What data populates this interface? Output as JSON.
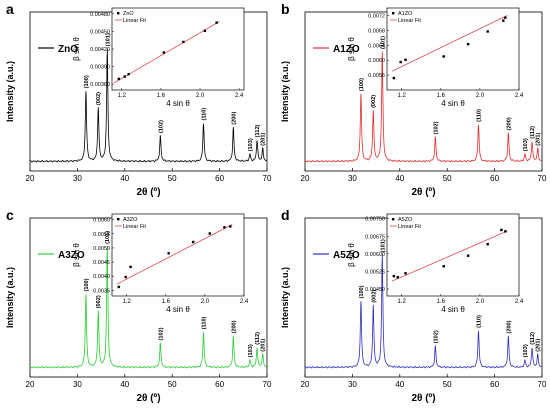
{
  "chart_data": [
    {
      "type": "line",
      "panel_label": "a",
      "legend": "ZnO",
      "color": "#000000",
      "xlabel": "2θ (º)",
      "ylabel": "Intensity (a.u.)",
      "xlim": [
        20,
        70
      ],
      "xticks": [
        20,
        30,
        40,
        50,
        60,
        70
      ],
      "peaks": [
        {
          "label": "(100)",
          "x": 31.8,
          "h": 0.5
        },
        {
          "label": "(002)",
          "x": 34.4,
          "h": 0.38
        },
        {
          "label": "(101)",
          "x": 36.3,
          "h": 0.8
        },
        {
          "label": "(102)",
          "x": 47.5,
          "h": 0.18
        },
        {
          "label": "(110)",
          "x": 56.6,
          "h": 0.27
        },
        {
          "label": "(200)",
          "x": 62.9,
          "h": 0.24
        },
        {
          "label": "(103)",
          "x": 66.4,
          "h": 0.05
        },
        {
          "label": "(112)",
          "x": 67.9,
          "h": 0.15
        },
        {
          "label": "(201)",
          "x": 69.1,
          "h": 0.09
        }
      ],
      "inset": {
        "type": "scatter",
        "xlabel": "4 sin θ",
        "ylabel": "β sin θ",
        "xlim": [
          1.1,
          2.45
        ],
        "ylim": [
          0.0035,
          0.0049
        ],
        "xticks": [
          "1.2",
          "1.6",
          "2.0",
          "2.4"
        ],
        "yticks": [
          "0.00360",
          "0.00390",
          "0.00420",
          "0.00450",
          "0.00480"
        ],
        "legend": [
          "ZnO",
          "Linear Fit"
        ],
        "points": [
          [
            1.17,
            0.00369
          ],
          [
            1.23,
            0.00373
          ],
          [
            1.27,
            0.00377
          ],
          [
            1.63,
            0.00414
          ],
          [
            1.83,
            0.00432
          ],
          [
            2.05,
            0.00451
          ],
          [
            2.17,
            0.00465
          ]
        ],
        "fit": [
          [
            1.12,
            0.00362
          ],
          [
            2.2,
            0.00467
          ]
        ]
      }
    },
    {
      "type": "line",
      "panel_label": "b",
      "legend": "A1ZO",
      "color": "#e03030",
      "xlabel": "2θ (º)",
      "ylabel": "Intensity (a.u.)",
      "xlim": [
        20,
        70
      ],
      "xticks": [
        20,
        30,
        40,
        50,
        60,
        70
      ],
      "peaks": [
        {
          "label": "(100)",
          "x": 31.8,
          "h": 0.48
        },
        {
          "label": "(002)",
          "x": 34.4,
          "h": 0.36
        },
        {
          "label": "(101)",
          "x": 36.3,
          "h": 0.78
        },
        {
          "label": "(102)",
          "x": 47.5,
          "h": 0.17
        },
        {
          "label": "(110)",
          "x": 56.6,
          "h": 0.26
        },
        {
          "label": "(200)",
          "x": 62.9,
          "h": 0.2
        },
        {
          "label": "(103)",
          "x": 66.4,
          "h": 0.05
        },
        {
          "label": "(112)",
          "x": 67.9,
          "h": 0.14
        },
        {
          "label": "(201)",
          "x": 69.1,
          "h": 0.09
        }
      ],
      "inset": {
        "type": "scatter",
        "xlabel": "4 sin θ",
        "ylabel": "β sin θ",
        "xlim": [
          1.05,
          2.4
        ],
        "ylim": [
          0.0052,
          0.0074
        ],
        "xticks": [
          "1.2",
          "1.6",
          "2.0",
          "2.4"
        ],
        "yticks": [
          "0.0056",
          "0.0060",
          "0.0064",
          "0.0068",
          "0.0072"
        ],
        "legend": [
          "A1ZO",
          "Linear Fit"
        ],
        "points": [
          [
            1.12,
            0.00552
          ],
          [
            1.19,
            0.00595
          ],
          [
            1.24,
            0.00601
          ],
          [
            1.63,
            0.0061
          ],
          [
            1.88,
            0.00643
          ],
          [
            2.08,
            0.00677
          ],
          [
            2.24,
            0.00706
          ],
          [
            2.26,
            0.00714
          ]
        ],
        "fit": [
          [
            1.1,
            0.0057
          ],
          [
            2.28,
            0.0072
          ]
        ]
      }
    },
    {
      "type": "line",
      "panel_label": "c",
      "legend": "A3ZO",
      "color": "#2ecc3a",
      "xlabel": "2θ (º)",
      "ylabel": "Intensity (a.u.)",
      "xlim": [
        20,
        70
      ],
      "xticks": [
        20,
        30,
        40,
        50,
        60,
        70
      ],
      "peaks": [
        {
          "label": "(100)",
          "x": 31.8,
          "h": 0.52
        },
        {
          "label": "(002)",
          "x": 34.4,
          "h": 0.4
        },
        {
          "label": "(101)",
          "x": 36.3,
          "h": 0.86
        },
        {
          "label": "(102)",
          "x": 47.5,
          "h": 0.17
        },
        {
          "label": "(110)",
          "x": 56.6,
          "h": 0.25
        },
        {
          "label": "(200)",
          "x": 62.9,
          "h": 0.22
        },
        {
          "label": "(103)",
          "x": 66.4,
          "h": 0.05
        },
        {
          "label": "(112)",
          "x": 67.9,
          "h": 0.14
        },
        {
          "label": "(201)",
          "x": 69.1,
          "h": 0.09
        }
      ],
      "inset": {
        "type": "scatter",
        "xlabel": "4 sin θ",
        "ylabel": "β sin θ",
        "xlim": [
          1.05,
          2.4
        ],
        "ylim": [
          0.0033,
          0.0062
        ],
        "xticks": [
          "1.2",
          "1.6",
          "2.0",
          "2.4"
        ],
        "yticks": [
          "0.0035",
          "0.0040",
          "0.0045",
          "0.0050",
          "0.0055",
          "0.0060"
        ],
        "legend": [
          "A3ZO",
          "Linear Fit"
        ],
        "points": [
          [
            1.12,
            0.00362
          ],
          [
            1.19,
            0.00397
          ],
          [
            1.24,
            0.00433
          ],
          [
            1.63,
            0.00481
          ],
          [
            1.88,
            0.00521
          ],
          [
            2.05,
            0.00551
          ],
          [
            2.2,
            0.00573
          ],
          [
            2.26,
            0.00576
          ]
        ],
        "fit": [
          [
            1.1,
            0.00372
          ],
          [
            2.28,
            0.00583
          ]
        ]
      }
    },
    {
      "type": "line",
      "panel_label": "d",
      "legend": "A5ZO",
      "color": "#3030c0",
      "xlabel": "2θ (º)",
      "ylabel": "Intensity (a.u.)",
      "xlim": [
        20,
        70
      ],
      "xticks": [
        20,
        30,
        40,
        50,
        60,
        70
      ],
      "peaks": [
        {
          "label": "(100)",
          "x": 31.8,
          "h": 0.47
        },
        {
          "label": "(002)",
          "x": 34.4,
          "h": 0.44
        },
        {
          "label": "(101)",
          "x": 36.3,
          "h": 0.8
        },
        {
          "label": "(102)",
          "x": 47.5,
          "h": 0.15
        },
        {
          "label": "(110)",
          "x": 56.6,
          "h": 0.26
        },
        {
          "label": "(200)",
          "x": 62.9,
          "h": 0.22
        },
        {
          "label": "(103)",
          "x": 66.4,
          "h": 0.05
        },
        {
          "label": "(112)",
          "x": 67.9,
          "h": 0.14
        },
        {
          "label": "(201)",
          "x": 69.1,
          "h": 0.09
        }
      ],
      "inset": {
        "type": "scatter",
        "xlabel": "4 sin θ",
        "ylabel": "β sin θ",
        "xlim": [
          1.05,
          2.4
        ],
        "ylim": [
          0.0042,
          0.0077
        ],
        "xticks": [
          "1.2",
          "1.6",
          "2.0",
          "2.4"
        ],
        "yticks": [
          "0.00450",
          "0.00525",
          "0.00600",
          "0.00675",
          "0.00750"
        ],
        "legend": [
          "A5ZO",
          "Linear Fit"
        ],
        "points": [
          [
            1.12,
            0.00505
          ],
          [
            1.16,
            0.005
          ],
          [
            1.24,
            0.00517
          ],
          [
            1.63,
            0.00547
          ],
          [
            1.88,
            0.00592
          ],
          [
            2.08,
            0.00641
          ],
          [
            2.22,
            0.00702
          ],
          [
            2.26,
            0.00696
          ]
        ],
        "fit": [
          [
            1.1,
            0.00483
          ],
          [
            2.28,
            0.00697
          ]
        ]
      }
    }
  ]
}
